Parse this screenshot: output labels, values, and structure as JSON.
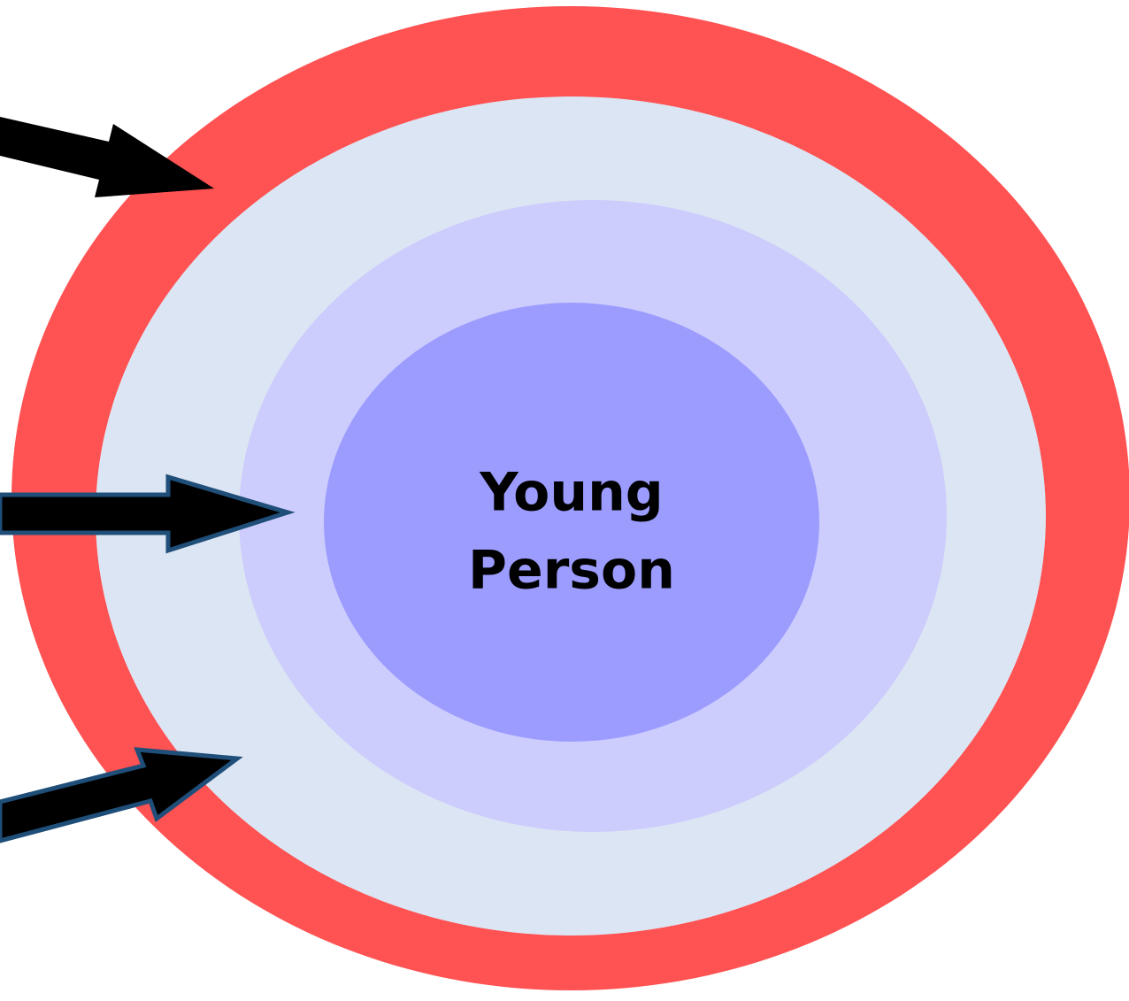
{
  "center": {
    "label_lines": [
      "Young",
      "Person"
    ]
  }
}
